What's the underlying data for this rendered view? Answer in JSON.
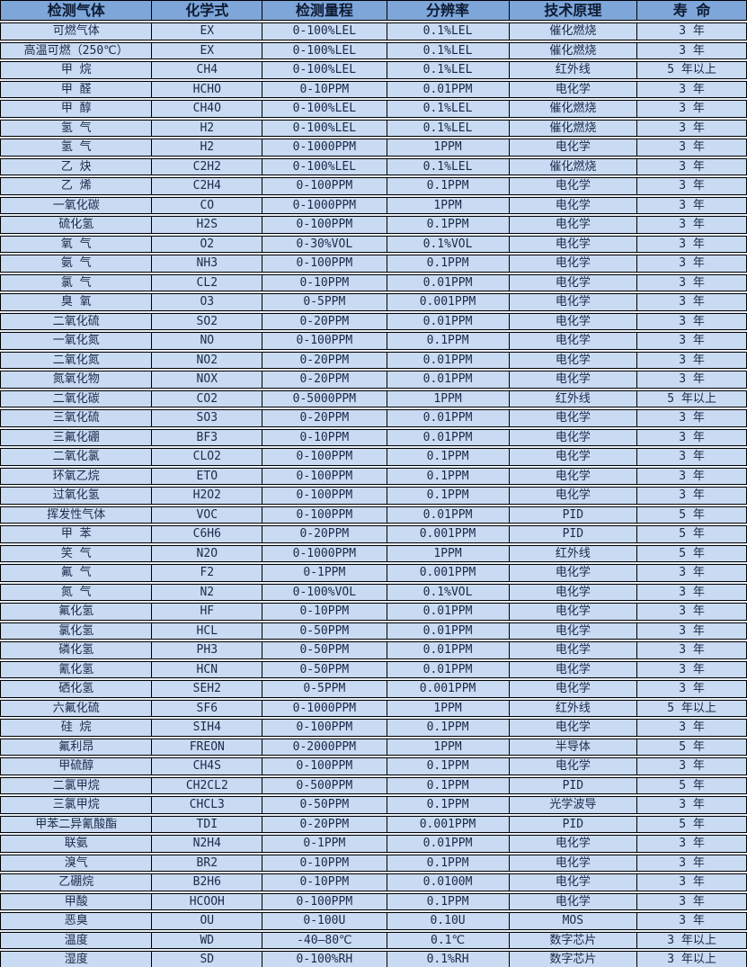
{
  "chart_data": {
    "type": "table",
    "columns": [
      "检测气体",
      "化学式",
      "检测量程",
      "分辨率",
      "技术原理",
      "寿 命"
    ],
    "rows": [
      [
        "可燃气体",
        "EX",
        "0-100%LEL",
        "0.1%LEL",
        "催化燃烧",
        "3 年"
      ],
      [
        "高温可燃（250℃）",
        "EX",
        "0-100%LEL",
        "0.1%LEL",
        "催化燃烧",
        "3 年"
      ],
      [
        "甲 烷",
        "CH4",
        "0-100%LEL",
        "0.1%LEL",
        "红外线",
        "5 年以上"
      ],
      [
        "甲 醛",
        "HCHO",
        "0-10PPM",
        "0.01PPM",
        "电化学",
        "3 年"
      ],
      [
        "甲 醇",
        "CH4O",
        "0-100%LEL",
        "0.1%LEL",
        "催化燃烧",
        "3 年"
      ],
      [
        "氢 气",
        "H2",
        "0-100%LEL",
        "0.1%LEL",
        "催化燃烧",
        "3 年"
      ],
      [
        "氢 气",
        "H2",
        "0-1000PPM",
        "1PPM",
        "电化学",
        "3 年"
      ],
      [
        "乙 炔",
        "C2H2",
        "0-100%LEL",
        "0.1%LEL",
        "催化燃烧",
        "3 年"
      ],
      [
        "乙 烯",
        "C2H4",
        "0-100PPM",
        "0.1PPM",
        "电化学",
        "3 年"
      ],
      [
        "一氧化碳",
        "CO",
        "0-1000PPM",
        "1PPM",
        "电化学",
        "3 年"
      ],
      [
        "硫化氢",
        "H2S",
        "0-100PPM",
        "0.1PPM",
        "电化学",
        "3 年"
      ],
      [
        "氧 气",
        "O2",
        "0-30%VOL",
        "0.1%VOL",
        "电化学",
        "3 年"
      ],
      [
        "氨 气",
        "NH3",
        "0-100PPM",
        "0.1PPM",
        "电化学",
        "3 年"
      ],
      [
        "氯 气",
        "CL2",
        "0-10PPM",
        "0.01PPM",
        "电化学",
        "3 年"
      ],
      [
        "臭 氧",
        "O3",
        "0-5PPM",
        "0.001PPM",
        "电化学",
        "3 年"
      ],
      [
        "二氧化硫",
        "SO2",
        "0-20PPM",
        "0.01PPM",
        "电化学",
        "3 年"
      ],
      [
        "一氧化氮",
        "NO",
        "0-100PPM",
        "0.1PPM",
        "电化学",
        "3 年"
      ],
      [
        "二氧化氮",
        "NO2",
        "0-20PPM",
        "0.01PPM",
        "电化学",
        "3 年"
      ],
      [
        "氮氧化物",
        "NOX",
        "0-20PPM",
        "0.01PPM",
        "电化学",
        "3 年"
      ],
      [
        "二氧化碳",
        "CO2",
        "0-5000PPM",
        "1PPM",
        "红外线",
        "5 年以上"
      ],
      [
        "三氧化硫",
        "SO3",
        "0-20PPM",
        "0.01PPM",
        "电化学",
        "3 年"
      ],
      [
        "三氟化硼",
        "BF3",
        "0-10PPM",
        "0.01PPM",
        "电化学",
        "3 年"
      ],
      [
        "二氧化氯",
        "CLO2",
        "0-100PPM",
        "0.1PPM",
        "电化学",
        "3 年"
      ],
      [
        "环氧乙烷",
        "ETO",
        "0-100PPM",
        "0.1PPM",
        "电化学",
        "3 年"
      ],
      [
        "过氧化氢",
        "H2O2",
        "0-100PPM",
        "0.1PPM",
        "电化学",
        "3 年"
      ],
      [
        "挥发性气体",
        "VOC",
        "0-100PPM",
        "0.01PPM",
        "PID",
        "5 年"
      ],
      [
        "甲 苯",
        "C6H6",
        "0-20PPM",
        "0.001PPM",
        "PID",
        "5 年"
      ],
      [
        "笑 气",
        "N2O",
        "0-1000PPM",
        "1PPM",
        "红外线",
        "5 年"
      ],
      [
        "氟 气",
        "F2",
        "0-1PPM",
        "0.001PPM",
        "电化学",
        "3 年"
      ],
      [
        "氮 气",
        "N2",
        "0-100%VOL",
        "0.1%VOL",
        "电化学",
        "3 年"
      ],
      [
        "氟化氢",
        "HF",
        "0-10PPM",
        "0.01PPM",
        "电化学",
        "3 年"
      ],
      [
        "氯化氢",
        "HCL",
        "0-50PPM",
        "0.01PPM",
        "电化学",
        "3 年"
      ],
      [
        "磷化氢",
        "PH3",
        "0-50PPM",
        "0.01PPM",
        "电化学",
        "3 年"
      ],
      [
        "氰化氢",
        "HCN",
        "0-50PPM",
        "0.01PPM",
        "电化学",
        "3 年"
      ],
      [
        "硒化氢",
        "SEH2",
        "0-5PPM",
        "0.001PPM",
        "电化学",
        "3 年"
      ],
      [
        "六氟化硫",
        "SF6",
        "0-1000PPM",
        "1PPM",
        "红外线",
        "5 年以上"
      ],
      [
        "硅 烷",
        "SIH4",
        "0-100PPM",
        "0.1PPM",
        "电化学",
        "3 年"
      ],
      [
        "氟利昂",
        "FREON",
        "0-2000PPM",
        "1PPM",
        "半导体",
        "5 年"
      ],
      [
        "甲硫醇",
        "CH4S",
        "0-100PPM",
        "0.1PPM",
        "电化学",
        "3 年"
      ],
      [
        "二氯甲烷",
        "CH2CL2",
        "0-500PPM",
        "0.1PPM",
        "PID",
        "5 年"
      ],
      [
        "三氯甲烷",
        "CHCL3",
        "0-50PPM",
        "0.1PPM",
        "光学波导",
        "3 年"
      ],
      [
        "甲苯二异氰酸酯",
        "TDI",
        "0-20PPM",
        "0.001PPM",
        "PID",
        "5 年"
      ],
      [
        "联氨",
        "N2H4",
        "0-1PPM",
        "0.01PPM",
        "电化学",
        "3 年"
      ],
      [
        "溴气",
        "BR2",
        "0-10PPM",
        "0.1PPM",
        "电化学",
        "3 年"
      ],
      [
        "乙硼烷",
        "B2H6",
        "0-10PPM",
        "0.0100M",
        "电化学",
        "3 年"
      ],
      [
        "甲酸",
        "HCOOH",
        "0-100PPM",
        "0.1PPM",
        "电化学",
        "3 年"
      ],
      [
        "恶臭",
        "OU",
        "0-100U",
        "0.10U",
        "MOS",
        "3 年"
      ],
      [
        "温度",
        "WD",
        "-40—80℃",
        "0.1℃",
        "数字芯片",
        "3 年以上"
      ],
      [
        "湿度",
        "SD",
        "0-100%RH",
        "0.1%RH",
        "数字芯片",
        "3 年以上"
      ]
    ]
  },
  "colors": {
    "header_bg": "#7ea6d9",
    "row_bg": "#c9dbf2",
    "gap_bg": "#e9eff8",
    "border": "#000000",
    "header_text": "#0d1b33",
    "row_text": "#1a2a4a"
  }
}
